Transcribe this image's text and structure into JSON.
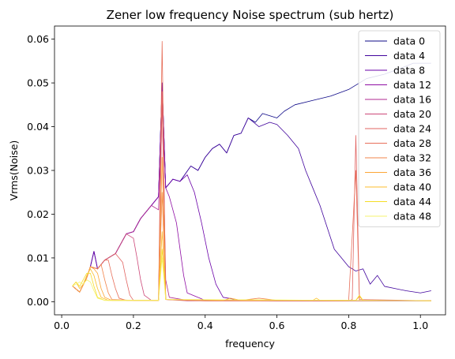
{
  "chart_data": {
    "type": "line",
    "title": "Zener low frequency Noise spectrum (sub hertz)",
    "xlabel": "frequency",
    "ylabel": "Vrms(Noise)",
    "xlim": [
      -0.02,
      1.07
    ],
    "ylim": [
      -0.003,
      0.063
    ],
    "xticks": [
      0.0,
      0.2,
      0.4,
      0.6,
      0.8,
      1.0
    ],
    "xtick_labels": [
      "0.0",
      "0.2",
      "0.4",
      "0.6",
      "0.8",
      "1.0"
    ],
    "yticks": [
      0.0,
      0.01,
      0.02,
      0.03,
      0.04,
      0.05,
      0.06
    ],
    "ytick_labels": [
      "0.00",
      "0.01",
      "0.02",
      "0.03",
      "0.04",
      "0.05",
      "0.06"
    ],
    "grid": false,
    "legend_position": "upper-right",
    "series": [
      {
        "name": "data 0",
        "color": "#0d0887",
        "points": [
          [
            0.03,
            0.0036
          ],
          [
            0.05,
            0.0022
          ],
          [
            0.07,
            0.0055
          ],
          [
            0.08,
            0.008
          ],
          [
            0.09,
            0.0115
          ],
          [
            0.1,
            0.0075
          ],
          [
            0.12,
            0.0095
          ],
          [
            0.15,
            0.011
          ],
          [
            0.18,
            0.0155
          ],
          [
            0.2,
            0.016
          ],
          [
            0.22,
            0.019
          ],
          [
            0.25,
            0.022
          ],
          [
            0.27,
            0.024
          ],
          [
            0.28,
            0.05
          ],
          [
            0.29,
            0.026
          ],
          [
            0.31,
            0.028
          ],
          [
            0.33,
            0.0275
          ],
          [
            0.36,
            0.031
          ],
          [
            0.38,
            0.03
          ],
          [
            0.4,
            0.033
          ],
          [
            0.42,
            0.035
          ],
          [
            0.44,
            0.036
          ],
          [
            0.46,
            0.034
          ],
          [
            0.48,
            0.038
          ],
          [
            0.5,
            0.0385
          ],
          [
            0.52,
            0.042
          ],
          [
            0.54,
            0.041
          ],
          [
            0.56,
            0.043
          ],
          [
            0.6,
            0.042
          ],
          [
            0.62,
            0.0435
          ],
          [
            0.65,
            0.045
          ],
          [
            0.7,
            0.046
          ],
          [
            0.75,
            0.047
          ],
          [
            0.8,
            0.0485
          ],
          [
            0.85,
            0.051
          ],
          [
            0.9,
            0.052
          ],
          [
            0.95,
            0.0535
          ],
          [
            0.98,
            0.0545
          ],
          [
            1.03,
            0.0545
          ]
        ]
      },
      {
        "name": "data 4",
        "color": "#41049d",
        "points": [
          [
            0.03,
            0.0036
          ],
          [
            0.05,
            0.0022
          ],
          [
            0.07,
            0.0055
          ],
          [
            0.08,
            0.008
          ],
          [
            0.09,
            0.0115
          ],
          [
            0.1,
            0.0075
          ],
          [
            0.12,
            0.0095
          ],
          [
            0.15,
            0.011
          ],
          [
            0.18,
            0.0155
          ],
          [
            0.2,
            0.016
          ],
          [
            0.22,
            0.019
          ],
          [
            0.25,
            0.022
          ],
          [
            0.27,
            0.024
          ],
          [
            0.28,
            0.05
          ],
          [
            0.29,
            0.026
          ],
          [
            0.31,
            0.028
          ],
          [
            0.33,
            0.0275
          ],
          [
            0.36,
            0.031
          ],
          [
            0.38,
            0.03
          ],
          [
            0.4,
            0.033
          ],
          [
            0.42,
            0.035
          ],
          [
            0.44,
            0.036
          ],
          [
            0.46,
            0.034
          ],
          [
            0.48,
            0.038
          ],
          [
            0.5,
            0.0385
          ],
          [
            0.52,
            0.042
          ],
          [
            0.55,
            0.04
          ],
          [
            0.58,
            0.041
          ],
          [
            0.6,
            0.0405
          ],
          [
            0.63,
            0.038
          ],
          [
            0.66,
            0.035
          ],
          [
            0.68,
            0.03
          ],
          [
            0.7,
            0.026
          ],
          [
            0.72,
            0.022
          ],
          [
            0.74,
            0.017
          ],
          [
            0.76,
            0.012
          ],
          [
            0.78,
            0.01
          ],
          [
            0.8,
            0.008
          ],
          [
            0.82,
            0.007
          ],
          [
            0.84,
            0.0075
          ],
          [
            0.86,
            0.004
          ],
          [
            0.88,
            0.006
          ],
          [
            0.9,
            0.0035
          ],
          [
            0.93,
            0.003
          ],
          [
            0.96,
            0.0025
          ],
          [
            1.0,
            0.002
          ],
          [
            1.03,
            0.0025
          ]
        ]
      },
      {
        "name": "data 8",
        "color": "#6a00a8",
        "points": [
          [
            0.03,
            0.0036
          ],
          [
            0.05,
            0.0022
          ],
          [
            0.07,
            0.0055
          ],
          [
            0.08,
            0.008
          ],
          [
            0.09,
            0.0115
          ],
          [
            0.1,
            0.0075
          ],
          [
            0.12,
            0.0095
          ],
          [
            0.15,
            0.011
          ],
          [
            0.18,
            0.0155
          ],
          [
            0.2,
            0.016
          ],
          [
            0.22,
            0.019
          ],
          [
            0.25,
            0.022
          ],
          [
            0.27,
            0.024
          ],
          [
            0.28,
            0.05
          ],
          [
            0.29,
            0.026
          ],
          [
            0.31,
            0.028
          ],
          [
            0.33,
            0.0275
          ],
          [
            0.35,
            0.029
          ],
          [
            0.37,
            0.025
          ],
          [
            0.39,
            0.018
          ],
          [
            0.41,
            0.01
          ],
          [
            0.43,
            0.004
          ],
          [
            0.45,
            0.001
          ],
          [
            0.5,
            0.0003
          ],
          [
            0.6,
            0.0002
          ],
          [
            0.8,
            0.0002
          ],
          [
            1.03,
            0.0002
          ]
        ]
      },
      {
        "name": "data 12",
        "color": "#8f0da4",
        "points": [
          [
            0.03,
            0.0036
          ],
          [
            0.05,
            0.0022
          ],
          [
            0.07,
            0.0055
          ],
          [
            0.08,
            0.008
          ],
          [
            0.1,
            0.0075
          ],
          [
            0.12,
            0.0095
          ],
          [
            0.15,
            0.011
          ],
          [
            0.18,
            0.0155
          ],
          [
            0.2,
            0.016
          ],
          [
            0.22,
            0.019
          ],
          [
            0.25,
            0.022
          ],
          [
            0.27,
            0.024
          ],
          [
            0.28,
            0.048
          ],
          [
            0.29,
            0.026
          ],
          [
            0.3,
            0.024
          ],
          [
            0.32,
            0.018
          ],
          [
            0.33,
            0.012
          ],
          [
            0.34,
            0.006
          ],
          [
            0.35,
            0.002
          ],
          [
            0.4,
            0.0003
          ],
          [
            0.6,
            0.0002
          ],
          [
            1.03,
            0.0002
          ]
        ]
      },
      {
        "name": "data 16",
        "color": "#b12a90",
        "points": [
          [
            0.03,
            0.0036
          ],
          [
            0.05,
            0.0022
          ],
          [
            0.07,
            0.0055
          ],
          [
            0.08,
            0.008
          ],
          [
            0.1,
            0.0075
          ],
          [
            0.12,
            0.0095
          ],
          [
            0.15,
            0.011
          ],
          [
            0.18,
            0.0155
          ],
          [
            0.2,
            0.016
          ],
          [
            0.22,
            0.019
          ],
          [
            0.25,
            0.022
          ],
          [
            0.27,
            0.021
          ],
          [
            0.28,
            0.046
          ],
          [
            0.29,
            0.005
          ],
          [
            0.3,
            0.001
          ],
          [
            0.35,
            0.0003
          ],
          [
            0.6,
            0.0002
          ],
          [
            1.03,
            0.0002
          ]
        ]
      },
      {
        "name": "data 20",
        "color": "#cc4778",
        "points": [
          [
            0.03,
            0.0036
          ],
          [
            0.05,
            0.0022
          ],
          [
            0.07,
            0.0055
          ],
          [
            0.08,
            0.008
          ],
          [
            0.1,
            0.0075
          ],
          [
            0.12,
            0.0095
          ],
          [
            0.15,
            0.011
          ],
          [
            0.18,
            0.0155
          ],
          [
            0.2,
            0.0145
          ],
          [
            0.21,
            0.01
          ],
          [
            0.22,
            0.005
          ],
          [
            0.23,
            0.0015
          ],
          [
            0.25,
            0.0003
          ],
          [
            0.27,
            0.0003
          ],
          [
            0.28,
            0.047
          ],
          [
            0.29,
            0.0005
          ],
          [
            0.35,
            0.0002
          ],
          [
            1.03,
            0.0002
          ]
        ]
      },
      {
        "name": "data 24",
        "color": "#e16462",
        "points": [
          [
            0.03,
            0.0036
          ],
          [
            0.05,
            0.0022
          ],
          [
            0.07,
            0.0055
          ],
          [
            0.08,
            0.008
          ],
          [
            0.1,
            0.0075
          ],
          [
            0.12,
            0.0095
          ],
          [
            0.15,
            0.011
          ],
          [
            0.17,
            0.009
          ],
          [
            0.18,
            0.005
          ],
          [
            0.19,
            0.0015
          ],
          [
            0.2,
            0.0003
          ],
          [
            0.27,
            0.0003
          ],
          [
            0.28,
            0.048
          ],
          [
            0.29,
            0.0005
          ],
          [
            0.4,
            0.0002
          ],
          [
            0.8,
            0.0002
          ],
          [
            0.81,
            0.0005
          ],
          [
            0.82,
            0.038
          ],
          [
            0.83,
            0.0005
          ],
          [
            1.03,
            0.0002
          ]
        ]
      },
      {
        "name": "data 28",
        "color": "#e76f5a",
        "points": [
          [
            0.03,
            0.0036
          ],
          [
            0.05,
            0.0022
          ],
          [
            0.07,
            0.0055
          ],
          [
            0.08,
            0.008
          ],
          [
            0.1,
            0.0075
          ],
          [
            0.12,
            0.0095
          ],
          [
            0.13,
            0.0095
          ],
          [
            0.14,
            0.006
          ],
          [
            0.15,
            0.003
          ],
          [
            0.16,
            0.0008
          ],
          [
            0.18,
            0.0003
          ],
          [
            0.27,
            0.0003
          ],
          [
            0.28,
            0.0595
          ],
          [
            0.29,
            0.0005
          ],
          [
            0.4,
            0.0002
          ],
          [
            0.8,
            0.0002
          ],
          [
            0.82,
            0.03
          ],
          [
            0.83,
            0.0003
          ],
          [
            1.03,
            0.0002
          ]
        ]
      },
      {
        "name": "data 32",
        "color": "#f2844b",
        "points": [
          [
            0.03,
            0.0036
          ],
          [
            0.05,
            0.0022
          ],
          [
            0.07,
            0.0055
          ],
          [
            0.08,
            0.008
          ],
          [
            0.1,
            0.0075
          ],
          [
            0.11,
            0.0085
          ],
          [
            0.12,
            0.005
          ],
          [
            0.13,
            0.002
          ],
          [
            0.14,
            0.0005
          ],
          [
            0.2,
            0.0003
          ],
          [
            0.27,
            0.0003
          ],
          [
            0.28,
            0.025
          ],
          [
            0.29,
            0.0005
          ],
          [
            0.5,
            0.0003
          ],
          [
            0.55,
            0.0008
          ],
          [
            0.6,
            0.0003
          ],
          [
            1.03,
            0.0002
          ]
        ]
      },
      {
        "name": "data 36",
        "color": "#fca636",
        "points": [
          [
            0.03,
            0.0036
          ],
          [
            0.05,
            0.0022
          ],
          [
            0.07,
            0.0055
          ],
          [
            0.08,
            0.008
          ],
          [
            0.09,
            0.0075
          ],
          [
            0.1,
            0.0065
          ],
          [
            0.11,
            0.003
          ],
          [
            0.12,
            0.001
          ],
          [
            0.14,
            0.0003
          ],
          [
            0.27,
            0.0003
          ],
          [
            0.28,
            0.033
          ],
          [
            0.29,
            0.0005
          ],
          [
            0.45,
            0.0003
          ],
          [
            0.47,
            0.0008
          ],
          [
            0.5,
            0.0003
          ],
          [
            0.82,
            0.0003
          ],
          [
            0.83,
            0.0012
          ],
          [
            0.84,
            0.0003
          ],
          [
            1.03,
            0.0002
          ]
        ]
      },
      {
        "name": "data 40",
        "color": "#fcbd2c",
        "points": [
          [
            0.03,
            0.0036
          ],
          [
            0.04,
            0.0045
          ],
          [
            0.05,
            0.003
          ],
          [
            0.06,
            0.004
          ],
          [
            0.07,
            0.006
          ],
          [
            0.08,
            0.0075
          ],
          [
            0.09,
            0.006
          ],
          [
            0.1,
            0.003
          ],
          [
            0.11,
            0.001
          ],
          [
            0.13,
            0.0003
          ],
          [
            0.27,
            0.0003
          ],
          [
            0.28,
            0.016
          ],
          [
            0.29,
            0.0005
          ],
          [
            0.7,
            0.0003
          ],
          [
            0.71,
            0.0008
          ],
          [
            0.72,
            0.0003
          ],
          [
            1.03,
            0.0002
          ]
        ]
      },
      {
        "name": "data 44",
        "color": "#f5dd26",
        "points": [
          [
            0.03,
            0.0036
          ],
          [
            0.04,
            0.0045
          ],
          [
            0.05,
            0.0035
          ],
          [
            0.06,
            0.005
          ],
          [
            0.07,
            0.0065
          ],
          [
            0.08,
            0.0065
          ],
          [
            0.09,
            0.0035
          ],
          [
            0.1,
            0.001
          ],
          [
            0.12,
            0.0003
          ],
          [
            0.27,
            0.0003
          ],
          [
            0.28,
            0.012
          ],
          [
            0.29,
            0.0005
          ],
          [
            0.82,
            0.0003
          ],
          [
            0.83,
            0.0015
          ],
          [
            0.84,
            0.0003
          ],
          [
            1.03,
            0.0002
          ]
        ]
      },
      {
        "name": "data 48",
        "color": "#f5f36d",
        "points": [
          [
            0.03,
            0.0036
          ],
          [
            0.04,
            0.004
          ],
          [
            0.05,
            0.0045
          ],
          [
            0.06,
            0.004
          ],
          [
            0.07,
            0.005
          ],
          [
            0.08,
            0.0045
          ],
          [
            0.09,
            0.0025
          ],
          [
            0.1,
            0.0008
          ],
          [
            0.12,
            0.0003
          ],
          [
            0.27,
            0.0003
          ],
          [
            0.28,
            0.01
          ],
          [
            0.29,
            0.0005
          ],
          [
            1.03,
            0.0002
          ]
        ]
      }
    ]
  }
}
